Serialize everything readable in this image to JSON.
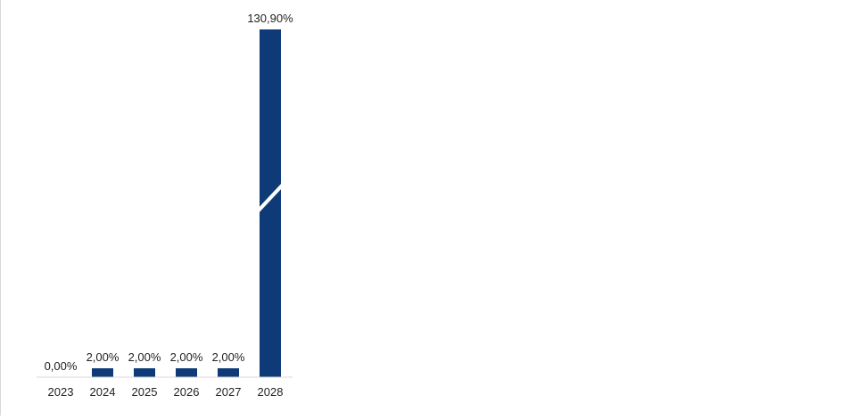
{
  "chart_data": {
    "type": "bar",
    "categories": [
      "2023",
      "2024",
      "2025",
      "2026",
      "2027",
      "2028"
    ],
    "values": [
      0,
      2,
      2,
      2,
      2,
      130.9
    ],
    "data_labels": [
      "0,00%",
      "2,00%",
      "2,00%",
      "2,00%",
      "2,00%",
      "130,90%"
    ],
    "title": "",
    "xlabel": "",
    "ylabel": "",
    "axis_break": true,
    "grid": false,
    "legend": "none",
    "colors": {
      "bar": "#0e3b77",
      "axis": "#d9d9d9",
      "text": "#222222"
    }
  }
}
